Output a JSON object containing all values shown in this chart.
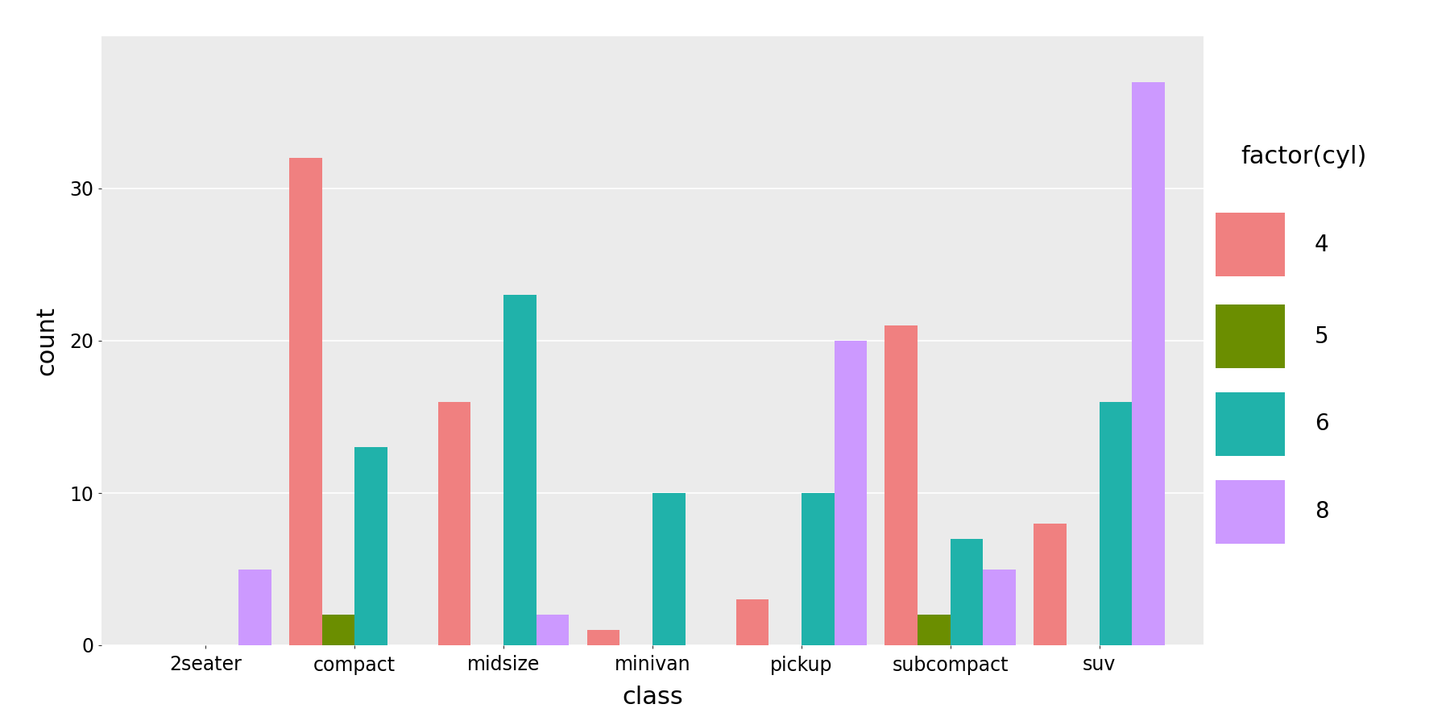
{
  "categories": [
    "2seater",
    "compact",
    "midsize",
    "minivan",
    "pickup",
    "subcompact",
    "suv"
  ],
  "cyl_labels": [
    "4",
    "5",
    "6",
    "8"
  ],
  "colors": {
    "4": "#F08080",
    "5": "#6B8E00",
    "6": "#20B2AA",
    "8": "#CC99FF"
  },
  "data": {
    "4": [
      0,
      32,
      16,
      1,
      3,
      21,
      8
    ],
    "5": [
      0,
      2,
      0,
      0,
      0,
      2,
      0
    ],
    "6": [
      0,
      13,
      23,
      10,
      10,
      7,
      16
    ],
    "8": [
      5,
      0,
      2,
      0,
      20,
      5,
      37
    ]
  },
  "xlabel": "class",
  "ylabel": "count",
  "legend_title": "factor(cyl)",
  "ylim": [
    0,
    40
  ],
  "yticks": [
    0,
    10,
    20,
    30
  ],
  "background_color": "#EBEBEB",
  "plot_bg_color": "#EBEBEB",
  "white_bg": "#FFFFFF",
  "grid_color": "#FFFFFF",
  "bar_width": 0.22,
  "xlabel_fontsize": 22,
  "ylabel_fontsize": 22,
  "tick_fontsize": 17,
  "legend_title_fontsize": 22,
  "legend_fontsize": 20
}
